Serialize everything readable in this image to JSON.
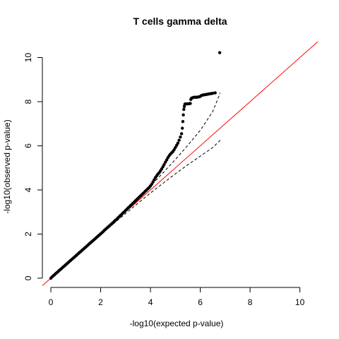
{
  "chart_data": {
    "type": "scatter",
    "title": "T cells gamma delta",
    "xlabel": "-log10(expected p-value)",
    "ylabel": "-log10(observed p-value)",
    "xlim": [
      0,
      10
    ],
    "ylim": [
      0,
      10
    ],
    "x_ticks": [
      "0",
      "2",
      "4",
      "6",
      "8",
      "10"
    ],
    "y_ticks": [
      "0",
      "2",
      "4",
      "6",
      "8",
      "10"
    ],
    "grid": false,
    "reference_line": {
      "slope": 1,
      "intercept": 0,
      "color": "#ff0000"
    },
    "confidence_band_color": "#000000",
    "point_color": "#000000",
    "confidence_band": {
      "x": [
        2.5,
        3.0,
        3.5,
        4.0,
        4.5,
        5.0,
        5.5,
        6.0,
        6.5,
        6.8
      ],
      "upper": [
        2.55,
        3.07,
        3.62,
        4.18,
        4.77,
        5.38,
        6.02,
        6.7,
        7.55,
        8.4
      ],
      "lower": [
        2.45,
        2.93,
        3.4,
        3.86,
        4.3,
        4.73,
        5.14,
        5.53,
        5.92,
        6.25
      ]
    },
    "series": [
      {
        "values": [
          [
            0.0,
            0.0
          ],
          [
            0.05,
            0.06
          ],
          [
            0.1,
            0.11
          ],
          [
            0.15,
            0.16
          ],
          [
            0.2,
            0.21
          ],
          [
            0.25,
            0.26
          ],
          [
            0.3,
            0.31
          ],
          [
            0.35,
            0.36
          ],
          [
            0.4,
            0.41
          ],
          [
            0.45,
            0.46
          ],
          [
            0.5,
            0.51
          ],
          [
            0.55,
            0.56
          ],
          [
            0.6,
            0.61
          ],
          [
            0.65,
            0.66
          ],
          [
            0.7,
            0.71
          ],
          [
            0.75,
            0.76
          ],
          [
            0.8,
            0.81
          ],
          [
            0.85,
            0.86
          ],
          [
            0.9,
            0.91
          ],
          [
            0.95,
            0.96
          ],
          [
            1.0,
            1.01
          ],
          [
            1.05,
            1.06
          ],
          [
            1.1,
            1.11
          ],
          [
            1.15,
            1.16
          ],
          [
            1.2,
            1.21
          ],
          [
            1.25,
            1.26
          ],
          [
            1.3,
            1.31
          ],
          [
            1.35,
            1.36
          ],
          [
            1.4,
            1.41
          ],
          [
            1.45,
            1.46
          ],
          [
            1.5,
            1.51
          ],
          [
            1.55,
            1.56
          ],
          [
            1.6,
            1.61
          ],
          [
            1.65,
            1.66
          ],
          [
            1.7,
            1.71
          ],
          [
            1.75,
            1.76
          ],
          [
            1.8,
            1.81
          ],
          [
            1.85,
            1.86
          ],
          [
            1.9,
            1.91
          ],
          [
            1.95,
            1.96
          ],
          [
            2.0,
            2.01
          ],
          [
            2.05,
            2.06
          ],
          [
            2.1,
            2.11
          ],
          [
            2.15,
            2.17
          ],
          [
            2.2,
            2.22
          ],
          [
            2.25,
            2.27
          ],
          [
            2.3,
            2.32
          ],
          [
            2.35,
            2.37
          ],
          [
            2.4,
            2.42
          ],
          [
            2.45,
            2.47
          ],
          [
            2.5,
            2.52
          ],
          [
            2.55,
            2.58
          ],
          [
            2.6,
            2.63
          ],
          [
            2.65,
            2.68
          ],
          [
            2.7,
            2.74
          ],
          [
            2.75,
            2.79
          ],
          [
            2.8,
            2.85
          ],
          [
            2.85,
            2.9
          ],
          [
            2.9,
            2.96
          ],
          [
            2.95,
            3.01
          ],
          [
            3.0,
            3.07
          ],
          [
            3.05,
            3.12
          ],
          [
            3.1,
            3.18
          ],
          [
            3.15,
            3.23
          ],
          [
            3.2,
            3.29
          ],
          [
            3.25,
            3.34
          ],
          [
            3.3,
            3.4
          ],
          [
            3.35,
            3.45
          ],
          [
            3.4,
            3.51
          ],
          [
            3.45,
            3.56
          ],
          [
            3.5,
            3.62
          ],
          [
            3.55,
            3.67
          ],
          [
            3.6,
            3.73
          ],
          [
            3.65,
            3.78
          ],
          [
            3.7,
            3.84
          ],
          [
            3.75,
            3.89
          ],
          [
            3.8,
            3.95
          ],
          [
            3.85,
            4.0
          ],
          [
            3.9,
            4.06
          ],
          [
            3.95,
            4.11
          ],
          [
            4.0,
            4.18
          ],
          [
            4.05,
            4.26
          ],
          [
            4.1,
            4.36
          ],
          [
            4.15,
            4.46
          ],
          [
            4.2,
            4.56
          ],
          [
            4.25,
            4.64
          ],
          [
            4.3,
            4.72
          ],
          [
            4.35,
            4.78
          ],
          [
            4.4,
            4.86
          ],
          [
            4.45,
            4.95
          ],
          [
            4.5,
            5.05
          ],
          [
            4.55,
            5.15
          ],
          [
            4.6,
            5.26
          ],
          [
            4.65,
            5.36
          ],
          [
            4.7,
            5.46
          ],
          [
            4.75,
            5.55
          ],
          [
            4.8,
            5.62
          ],
          [
            4.85,
            5.68
          ],
          [
            4.9,
            5.74
          ],
          [
            4.95,
            5.82
          ],
          [
            5.0,
            5.92
          ],
          [
            5.05,
            6.02
          ],
          [
            5.1,
            6.12
          ],
          [
            5.15,
            6.25
          ],
          [
            5.2,
            6.4
          ],
          [
            5.25,
            6.55
          ],
          [
            5.28,
            6.8
          ],
          [
            5.3,
            7.1
          ],
          [
            5.32,
            7.4
          ],
          [
            5.34,
            7.65
          ],
          [
            5.36,
            7.78
          ],
          [
            5.38,
            7.88
          ],
          [
            5.4,
            7.9
          ],
          [
            5.45,
            7.9
          ],
          [
            5.5,
            7.9
          ],
          [
            5.55,
            7.91
          ],
          [
            5.6,
            7.92
          ],
          [
            5.62,
            8.1
          ],
          [
            5.65,
            8.16
          ],
          [
            5.7,
            8.18
          ],
          [
            5.75,
            8.2
          ],
          [
            5.8,
            8.2
          ],
          [
            5.85,
            8.2
          ],
          [
            5.9,
            8.21
          ],
          [
            5.95,
            8.22
          ],
          [
            6.0,
            8.24
          ],
          [
            6.05,
            8.28
          ],
          [
            6.1,
            8.3
          ],
          [
            6.15,
            8.31
          ],
          [
            6.2,
            8.32
          ],
          [
            6.25,
            8.33
          ],
          [
            6.3,
            8.34
          ],
          [
            6.35,
            8.35
          ],
          [
            6.4,
            8.36
          ],
          [
            6.45,
            8.37
          ],
          [
            6.5,
            8.38
          ],
          [
            6.6,
            8.4
          ],
          [
            6.78,
            10.22
          ]
        ]
      }
    ]
  }
}
